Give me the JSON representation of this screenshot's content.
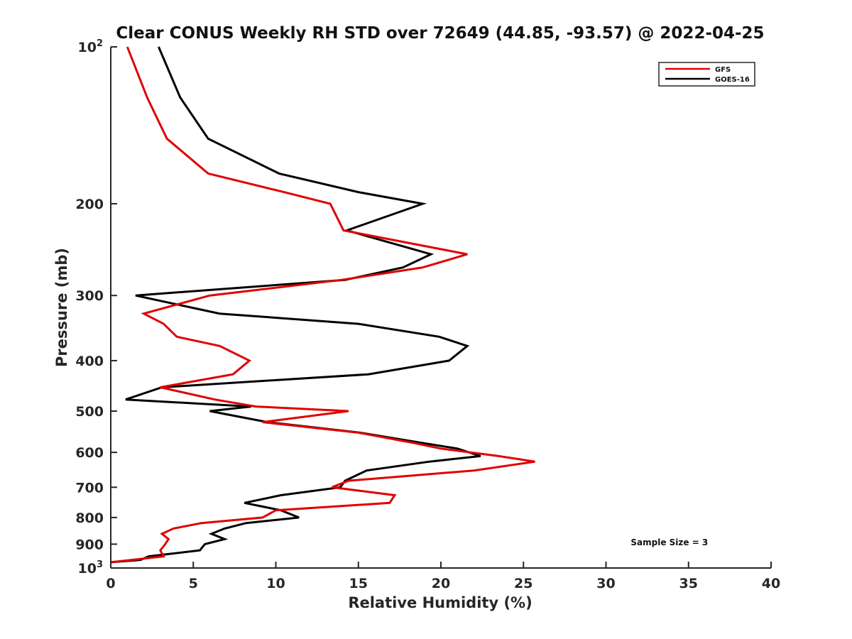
{
  "chart_data": {
    "type": "line",
    "title": "Clear CONUS Weekly RH STD over 72649 (44.85, -93.57) @ 2022-04-25",
    "xlabel": "Relative Humidity (%)",
    "ylabel": "Pressure (mb)",
    "xlim": [
      0,
      40
    ],
    "ylim": [
      100,
      1000
    ],
    "y_scale": "log",
    "y_reversed": true,
    "x_ticks": [
      "0",
      "5",
      "10",
      "15",
      "20",
      "25",
      "30",
      "35",
      "40"
    ],
    "y_ticks": [
      {
        "value": 100,
        "label": "10",
        "sup": "2"
      },
      {
        "value": 200,
        "label": "200",
        "sup": ""
      },
      {
        "value": 300,
        "label": "300",
        "sup": ""
      },
      {
        "value": 400,
        "label": "400",
        "sup": ""
      },
      {
        "value": 500,
        "label": "500",
        "sup": ""
      },
      {
        "value": 600,
        "label": "600",
        "sup": ""
      },
      {
        "value": 700,
        "label": "700",
        "sup": ""
      },
      {
        "value": 800,
        "label": "800",
        "sup": ""
      },
      {
        "value": 900,
        "label": "900",
        "sup": ""
      },
      {
        "value": 1000,
        "label": "10",
        "sup": "3"
      }
    ],
    "grid": false,
    "legend_position": "top-right",
    "series": [
      {
        "name": "GFS",
        "color": "#e00000",
        "points": [
          [
            1.0,
            100
          ],
          [
            2.2,
            125
          ],
          [
            3.4,
            150
          ],
          [
            5.9,
            175
          ],
          [
            10.5,
            190
          ],
          [
            13.3,
            200
          ],
          [
            14.1,
            225
          ],
          [
            21.6,
            250
          ],
          [
            18.9,
            265
          ],
          [
            14.0,
            280
          ],
          [
            6.0,
            300
          ],
          [
            2.0,
            325
          ],
          [
            3.2,
            340
          ],
          [
            4.0,
            360
          ],
          [
            6.6,
            375
          ],
          [
            8.4,
            400
          ],
          [
            7.4,
            425
          ],
          [
            3.0,
            450
          ],
          [
            6.3,
            475
          ],
          [
            8.8,
            490
          ],
          [
            14.4,
            500
          ],
          [
            9.2,
            525
          ],
          [
            15.0,
            550
          ],
          [
            18.3,
            575
          ],
          [
            20.0,
            590
          ],
          [
            23.5,
            610
          ],
          [
            25.7,
            625
          ],
          [
            22.0,
            650
          ],
          [
            14.4,
            680
          ],
          [
            13.4,
            700
          ],
          [
            17.2,
            725
          ],
          [
            16.9,
            750
          ],
          [
            10.0,
            775
          ],
          [
            9.2,
            800
          ],
          [
            5.5,
            820
          ],
          [
            3.8,
            840
          ],
          [
            3.1,
            860
          ],
          [
            3.5,
            880
          ],
          [
            3.3,
            900
          ],
          [
            3.0,
            925
          ],
          [
            3.2,
            950
          ],
          [
            0.0,
            975
          ]
        ]
      },
      {
        "name": "GOES-16",
        "color": "#000000",
        "points": [
          [
            2.9,
            100
          ],
          [
            4.2,
            125
          ],
          [
            5.9,
            150
          ],
          [
            10.2,
            175
          ],
          [
            15.0,
            190
          ],
          [
            18.9,
            200
          ],
          [
            14.3,
            225
          ],
          [
            19.4,
            250
          ],
          [
            17.7,
            265
          ],
          [
            14.2,
            280
          ],
          [
            1.5,
            300
          ],
          [
            6.6,
            325
          ],
          [
            15.0,
            340
          ],
          [
            19.9,
            360
          ],
          [
            21.6,
            375
          ],
          [
            20.5,
            400
          ],
          [
            15.6,
            425
          ],
          [
            3.1,
            450
          ],
          [
            0.9,
            475
          ],
          [
            8.5,
            490
          ],
          [
            6.0,
            500
          ],
          [
            9.5,
            525
          ],
          [
            15.1,
            550
          ],
          [
            18.8,
            575
          ],
          [
            21.0,
            590
          ],
          [
            22.4,
            610
          ],
          [
            19.3,
            625
          ],
          [
            15.5,
            650
          ],
          [
            14.2,
            680
          ],
          [
            13.9,
            700
          ],
          [
            10.3,
            725
          ],
          [
            8.1,
            750
          ],
          [
            10.3,
            775
          ],
          [
            11.4,
            800
          ],
          [
            8.2,
            820
          ],
          [
            6.9,
            840
          ],
          [
            6.1,
            860
          ],
          [
            6.9,
            880
          ],
          [
            5.7,
            900
          ],
          [
            5.4,
            925
          ],
          [
            2.3,
            950
          ],
          [
            1.8,
            965
          ],
          [
            0.0,
            975
          ]
        ]
      }
    ],
    "annotations": [
      {
        "text": "Sample Size = 3",
        "x": 31.5,
        "y": 910
      }
    ]
  }
}
